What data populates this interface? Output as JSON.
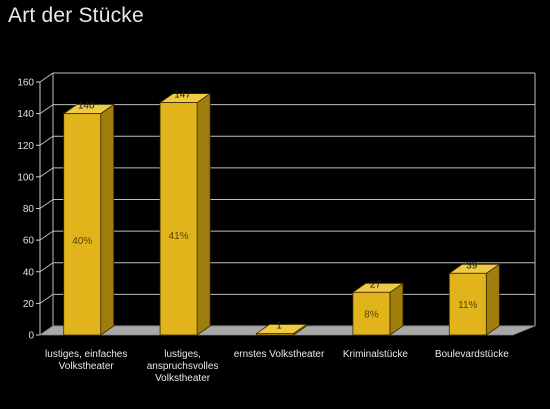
{
  "chart_data": {
    "type": "bar",
    "title": "Art der Stücke",
    "categories": [
      [
        "lustiges, einfaches",
        "Volkstheater"
      ],
      [
        "lustiges,",
        "anspruchsvolles",
        "Volkstheater"
      ],
      [
        "ernstes Volkstheater"
      ],
      [
        "Kriminalstücke"
      ],
      [
        "Boulevardstücke"
      ]
    ],
    "values": [
      140,
      147,
      1,
      27,
      39
    ],
    "percent_labels": [
      "40%",
      "41%",
      "",
      "8%",
      "11%"
    ],
    "yticks": [
      0,
      20,
      40,
      60,
      80,
      100,
      120,
      140,
      160
    ],
    "ylim": [
      0,
      160
    ],
    "grid": true,
    "colors": {
      "bar_front": "#E0B41A",
      "bar_side": "#A07E0C",
      "bar_top": "#EFCB45",
      "floor": "#A8A8A8",
      "grid": "#BFBFBF",
      "background": "#000000"
    }
  }
}
